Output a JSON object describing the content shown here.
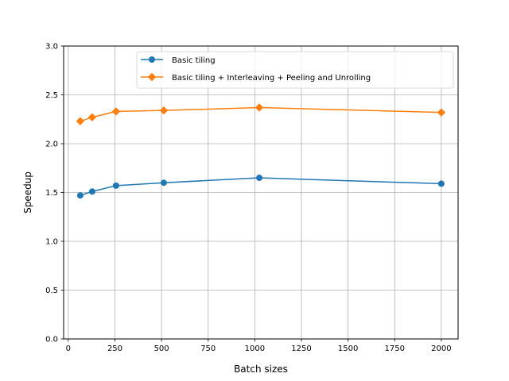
{
  "chart_data": {
    "type": "line",
    "title": "",
    "xlabel": "Batch sizes",
    "ylabel": "Speedup",
    "xlim": [
      -25,
      2090
    ],
    "ylim": [
      0,
      3.0
    ],
    "x_ticks": [
      0,
      250,
      500,
      750,
      1000,
      1250,
      1500,
      1750,
      2000
    ],
    "y_ticks": [
      0.0,
      0.5,
      1.0,
      1.5,
      2.0,
      2.5,
      3.0
    ],
    "grid": true,
    "legend_position": "top-right",
    "series": [
      {
        "name": "Basic tiling",
        "color": "#1f77b4",
        "marker": "circle",
        "x": [
          64,
          128,
          256,
          512,
          1024,
          2000
        ],
        "y": [
          1.47,
          1.51,
          1.57,
          1.6,
          1.65,
          1.59
        ]
      },
      {
        "name": "Basic tiling + Interleaving + Peeling and Unrolling",
        "color": "#ff7f0e",
        "marker": "diamond",
        "x": [
          64,
          128,
          256,
          512,
          1024,
          2000
        ],
        "y": [
          2.23,
          2.27,
          2.33,
          2.34,
          2.37,
          2.32
        ]
      }
    ]
  }
}
